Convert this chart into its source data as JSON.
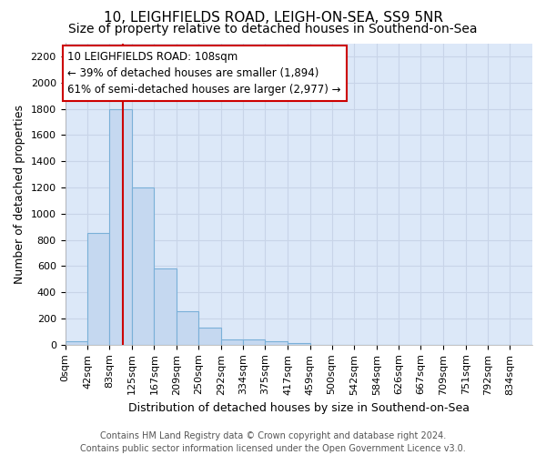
{
  "title_line1": "10, LEIGHFIELDS ROAD, LEIGH-ON-SEA, SS9 5NR",
  "title_line2": "Size of property relative to detached houses in Southend-on-Sea",
  "xlabel": "Distribution of detached houses by size in Southend-on-Sea",
  "ylabel": "Number of detached properties",
  "footer_line1": "Contains HM Land Registry data © Crown copyright and database right 2024.",
  "footer_line2": "Contains public sector information licensed under the Open Government Licence v3.0.",
  "bar_values": [
    25,
    850,
    1800,
    1200,
    580,
    255,
    130,
    40,
    40,
    25,
    15,
    0,
    0,
    0,
    0,
    0,
    0,
    0,
    0,
    0,
    0
  ],
  "bin_edges": [
    0,
    42,
    83,
    125,
    167,
    209,
    250,
    292,
    334,
    375,
    417,
    459,
    500,
    542,
    584,
    626,
    667,
    709,
    751,
    792,
    834
  ],
  "tick_labels": [
    "0sqm",
    "42sqm",
    "83sqm",
    "125sqm",
    "167sqm",
    "209sqm",
    "250sqm",
    "292sqm",
    "334sqm",
    "375sqm",
    "417sqm",
    "459sqm",
    "500sqm",
    "542sqm",
    "584sqm",
    "626sqm",
    "667sqm",
    "709sqm",
    "751sqm",
    "792sqm",
    "834sqm"
  ],
  "bar_color": "#c5d8f0",
  "bar_edge_color": "#7ab0d8",
  "annotation_line1": "10 LEIGHFIELDS ROAD: 108sqm",
  "annotation_line2": "← 39% of detached houses are smaller (1,894)",
  "annotation_line3": "61% of semi-detached houses are larger (2,977) →",
  "vline_x": 108,
  "vline_color": "#cc0000",
  "annotation_box_facecolor": "#ffffff",
  "annotation_box_edgecolor": "#cc0000",
  "ylim": [
    0,
    2300
  ],
  "yticks": [
    0,
    200,
    400,
    600,
    800,
    1000,
    1200,
    1400,
    1600,
    1800,
    2000,
    2200
  ],
  "grid_color": "#c8d4e8",
  "plot_bg_color": "#dce8f8",
  "fig_bg_color": "#ffffff",
  "title_fontsize": 11,
  "subtitle_fontsize": 10,
  "tick_fontsize": 8,
  "ylabel_fontsize": 9,
  "xlabel_fontsize": 9,
  "annotation_fontsize": 8.5,
  "footer_fontsize": 7
}
